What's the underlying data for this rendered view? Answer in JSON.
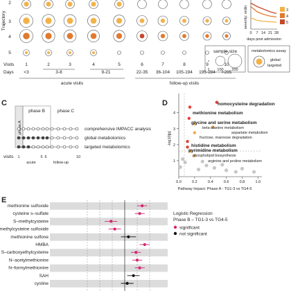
{
  "panel_a_top": {
    "y_axis_label": "Trajectory",
    "trajectories": [
      "2",
      "3",
      "4",
      "5"
    ],
    "visits": [
      "1",
      "2",
      "3",
      "4",
      "5",
      "6",
      "7",
      "8",
      "9",
      "10"
    ],
    "visits_row_label": "Visits",
    "days_row_label": "Days",
    "days": [
      "<3",
      "",
      "3-8",
      "",
      "9-21",
      "22-35",
      "36-104",
      "105-194",
      "195-284",
      ">285"
    ],
    "acute_label": "acute visits",
    "followup_label": "follow-up visits",
    "severity_inset": {
      "ylabel": "severity: ordin",
      "xlabel": "days post admission",
      "xticks": [
        "0",
        "7",
        "14",
        "21",
        "28"
      ],
      "legend": [
        "3",
        "4",
        "5"
      ],
      "colors": {
        "t3": "#f2b24a",
        "t4": "#e07a2e",
        "t5": "#c6492a"
      }
    },
    "sample_size_legend": {
      "title": "sample size",
      "ticks": [
        "1",
        "100",
        "200"
      ]
    },
    "assay_legend": {
      "title": "metabolomics assay",
      "items": [
        "global",
        "targeted"
      ]
    }
  },
  "panel_c": {
    "label": "C",
    "phase_a": "phase A",
    "phase_b": "phase B",
    "phase_c": "phase C",
    "rows": [
      "comprehensive IMPACC analysis",
      "global metabolomics",
      "targeted metabolomics"
    ],
    "visits_label": "visits",
    "visit_ticks": [
      "1",
      "5",
      "6",
      "10"
    ],
    "acute": "acute",
    "followup": "follow-up"
  },
  "panel_d": {
    "label": "D",
    "ylabel": "-log10[p]",
    "xlabel": "Pathway Impact: Phase A - TG1-3 vs TG4-5",
    "xticks": [
      "0.0",
      "0.2",
      "0.4",
      "0.6",
      "0.8",
      "1.0"
    ],
    "yticks": [
      "1",
      "2",
      "3",
      "4"
    ],
    "labels": [
      {
        "text": "homocysteine degradation",
        "bold": true
      },
      {
        "text": "methionine metabolism",
        "bold": true
      },
      {
        "text": "glycine and serine metabolism",
        "bold": true
      },
      {
        "text": "beta-alanine metabolism",
        "bold": false
      },
      {
        "text": "aspartate metabolism",
        "bold": false
      },
      {
        "text": "fructose, mannose degradation",
        "bold": false
      },
      {
        "text": "histidine metabolism",
        "bold": true
      },
      {
        "text": "pyrimidine metabolism",
        "bold": true
      },
      {
        "text": "phospholipid biosynthesis",
        "bold": false
      },
      {
        "text": "arginine and proline metabolism",
        "bold": false
      }
    ]
  },
  "panel_e": {
    "label": "E",
    "rows": [
      "methionine sulfoxide",
      "cysteine s–sulfate",
      "S–methylcysteine",
      "S–methylcysteine sulfoxide",
      "methionine sulfone",
      "HMBA",
      "S–carboxyethylcysteine",
      "N–acetylmethionine",
      "N–formylmethionine",
      "SAH",
      "cystine"
    ],
    "legend_title": "Logistic Regression",
    "legend_subtitle": "Phase B – TG1-3 vs TG4-5",
    "legend_items": [
      "significant",
      "not significant"
    ],
    "colors": {
      "sig": "#d6246e",
      "nonsig": "#111111"
    }
  },
  "chart_data": [
    {
      "type": "line",
      "title": "",
      "xlabel": "days post admission",
      "ylabel": "severity: ordin",
      "x": [
        0,
        7,
        14,
        21,
        28
      ],
      "series": [
        {
          "name": "3",
          "values": [
            3.3,
            3.0,
            2.9,
            2.85,
            2.8
          ]
        },
        {
          "name": "4",
          "values": [
            4.6,
            4.0,
            3.7,
            3.5,
            3.4
          ]
        },
        {
          "name": "5",
          "values": [
            5.0,
            4.6,
            4.3,
            4.0,
            3.8
          ]
        }
      ]
    },
    {
      "type": "scatter",
      "title": "",
      "xlabel": "Pathway Impact: Phase A - TG1-3 vs TG4-5",
      "ylabel": "-log10[p]",
      "xlim": [
        0,
        1.05
      ],
      "ylim": [
        0,
        5.2
      ],
      "points": [
        {
          "x": 0.48,
          "y": 4.65,
          "label": "homocysteine degradation",
          "sig": true
        },
        {
          "x": 0.14,
          "y": 4.35,
          "label": "methionine metabolism",
          "sig": true
        },
        {
          "x": 0.13,
          "y": 3.65,
          "label": "glycine and serine metabolism",
          "sig": true
        },
        {
          "x": 0.2,
          "y": 3.3,
          "label": "beta-alanine metabolism",
          "sig": false
        },
        {
          "x": 0.43,
          "y": 3.1,
          "label": "aspartate metabolism",
          "sig": false
        },
        {
          "x": 0.2,
          "y": 2.75,
          "label": "fructose, mannose degradation",
          "sig": false
        },
        {
          "x": 0.11,
          "y": 2.2,
          "label": "histidine metabolism",
          "sig": true
        },
        {
          "x": 0.11,
          "y": 1.85,
          "label": "pyrimidine metabolism",
          "sig": true
        },
        {
          "x": 0.15,
          "y": 1.6,
          "label": "phospholipid biosynthesis",
          "sig": false
        },
        {
          "x": 0.2,
          "y": 1.3,
          "label": "arginine and proline metabolism",
          "sig": false
        },
        {
          "x": 0.05,
          "y": 1.1
        },
        {
          "x": 0.08,
          "y": 0.9
        },
        {
          "x": 0.3,
          "y": 0.95
        },
        {
          "x": 0.35,
          "y": 0.7
        },
        {
          "x": 0.45,
          "y": 0.55
        },
        {
          "x": 0.55,
          "y": 0.75
        },
        {
          "x": 0.6,
          "y": 0.4
        },
        {
          "x": 0.72,
          "y": 0.3
        },
        {
          "x": 0.8,
          "y": 0.5
        },
        {
          "x": 0.95,
          "y": 0.3
        },
        {
          "x": 0.25,
          "y": 0.45
        },
        {
          "x": 0.02,
          "y": 0.6
        }
      ]
    },
    {
      "type": "scatter",
      "title": "",
      "xlabel": "",
      "ylabel": "",
      "categories": [
        "methionine sulfoxide",
        "cysteine s–sulfate",
        "S–methylcysteine",
        "S–methylcysteine sulfoxide",
        "methionine sulfone",
        "HMBA",
        "S–carboxyethylcysteine",
        "N–acetylmethionine",
        "N–formylmethionine",
        "SAH",
        "cystine"
      ],
      "estimate": [
        1.4,
        1.2,
        -1.1,
        -0.8,
        0.3,
        1.6,
        0.9,
        1.0,
        1.2,
        0.7,
        0.2
      ],
      "ci_low": [
        1.0,
        0.8,
        -1.6,
        -1.3,
        -0.3,
        1.2,
        0.5,
        0.6,
        0.8,
        0.2,
        -0.3
      ],
      "ci_high": [
        1.8,
        1.6,
        -0.6,
        -0.3,
        0.9,
        2.0,
        1.3,
        1.4,
        1.6,
        1.2,
        0.7
      ],
      "significant": [
        true,
        true,
        true,
        true,
        false,
        true,
        true,
        true,
        true,
        false,
        false
      ]
    }
  ]
}
